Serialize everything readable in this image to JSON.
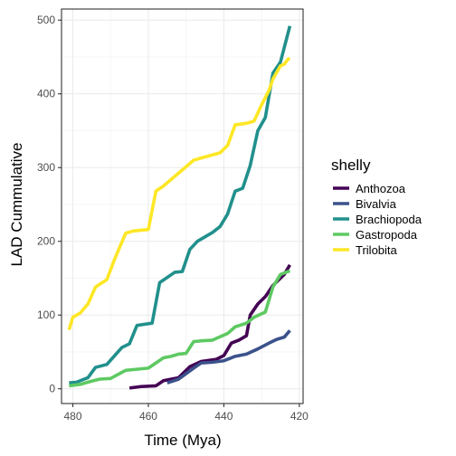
{
  "chart_data": {
    "type": "line",
    "xlabel": "Time (Mya)",
    "ylabel": "LAD Cummulative",
    "x_reversed": true,
    "xlim": [
      483,
      419
    ],
    "ylim": [
      -20,
      515
    ],
    "x_ticks": [
      480,
      460,
      440,
      420
    ],
    "y_ticks": [
      0,
      100,
      200,
      300,
      400,
      500
    ],
    "grid": true,
    "legend": {
      "title": "shelly",
      "position": "right"
    },
    "series": [
      {
        "name": "Anthozoa",
        "color": "#440154",
        "points": [
          [
            465,
            1
          ],
          [
            462,
            3
          ],
          [
            458,
            4
          ],
          [
            456,
            11
          ],
          [
            452,
            15
          ],
          [
            449,
            30
          ],
          [
            446,
            37
          ],
          [
            442,
            40
          ],
          [
            440,
            45
          ],
          [
            438,
            62
          ],
          [
            436,
            66
          ],
          [
            434,
            72
          ],
          [
            433,
            100
          ],
          [
            431,
            115
          ],
          [
            429,
            125
          ],
          [
            427,
            140
          ],
          [
            424,
            155
          ],
          [
            422.5,
            168
          ]
        ]
      },
      {
        "name": "Bivalvia",
        "color": "#3b528b",
        "points": [
          [
            455,
            8
          ],
          [
            452,
            13
          ],
          [
            448,
            28
          ],
          [
            446,
            35
          ],
          [
            443,
            36
          ],
          [
            440,
            38
          ],
          [
            437,
            44
          ],
          [
            434,
            47
          ],
          [
            431,
            54
          ],
          [
            428,
            62
          ],
          [
            426,
            67
          ],
          [
            424,
            70
          ],
          [
            422.5,
            79
          ]
        ]
      },
      {
        "name": "Brachiopoda",
        "color": "#21908c",
        "points": [
          [
            481,
            8
          ],
          [
            479,
            9
          ],
          [
            476,
            15
          ],
          [
            474,
            29
          ],
          [
            471,
            33
          ],
          [
            467,
            56
          ],
          [
            465,
            61
          ],
          [
            463,
            86
          ],
          [
            459,
            89
          ],
          [
            457,
            144
          ],
          [
            453,
            158
          ],
          [
            451,
            159
          ],
          [
            449,
            189
          ],
          [
            447,
            200
          ],
          [
            443,
            212
          ],
          [
            441,
            220
          ],
          [
            439,
            237
          ],
          [
            437,
            268
          ],
          [
            435,
            272
          ],
          [
            433,
            303
          ],
          [
            431,
            350
          ],
          [
            429,
            368
          ],
          [
            427,
            428
          ],
          [
            425,
            443
          ],
          [
            422.5,
            492
          ]
        ]
      },
      {
        "name": "Gastropoda",
        "color": "#5ec962",
        "points": [
          [
            481,
            4
          ],
          [
            478,
            6
          ],
          [
            476,
            9
          ],
          [
            473,
            13
          ],
          [
            470,
            14
          ],
          [
            466,
            25
          ],
          [
            464,
            26
          ],
          [
            460,
            28
          ],
          [
            456,
            42
          ],
          [
            454,
            44
          ],
          [
            452,
            47
          ],
          [
            450,
            48
          ],
          [
            448,
            64
          ],
          [
            446,
            65
          ],
          [
            443,
            66
          ],
          [
            439,
            75
          ],
          [
            437,
            84
          ],
          [
            434,
            89
          ],
          [
            432,
            97
          ],
          [
            429,
            104
          ],
          [
            427,
            138
          ],
          [
            425,
            155
          ],
          [
            422.5,
            160
          ]
        ]
      },
      {
        "name": "Trilobita",
        "color": "#fde725",
        "points": [
          [
            481,
            80
          ],
          [
            480,
            97
          ],
          [
            478,
            103
          ],
          [
            476,
            115
          ],
          [
            474,
            138
          ],
          [
            471,
            148
          ],
          [
            469,
            175
          ],
          [
            466,
            211
          ],
          [
            464,
            214
          ],
          [
            460,
            216
          ],
          [
            458,
            268
          ],
          [
            456,
            275
          ],
          [
            448,
            310
          ],
          [
            446,
            313
          ],
          [
            441,
            320
          ],
          [
            439,
            330
          ],
          [
            437,
            358
          ],
          [
            434,
            360
          ],
          [
            432,
            363
          ],
          [
            430,
            385
          ],
          [
            428,
            405
          ],
          [
            427,
            420
          ],
          [
            425,
            438
          ],
          [
            424,
            440
          ],
          [
            423,
            447
          ],
          [
            422.5,
            448
          ]
        ]
      }
    ]
  }
}
